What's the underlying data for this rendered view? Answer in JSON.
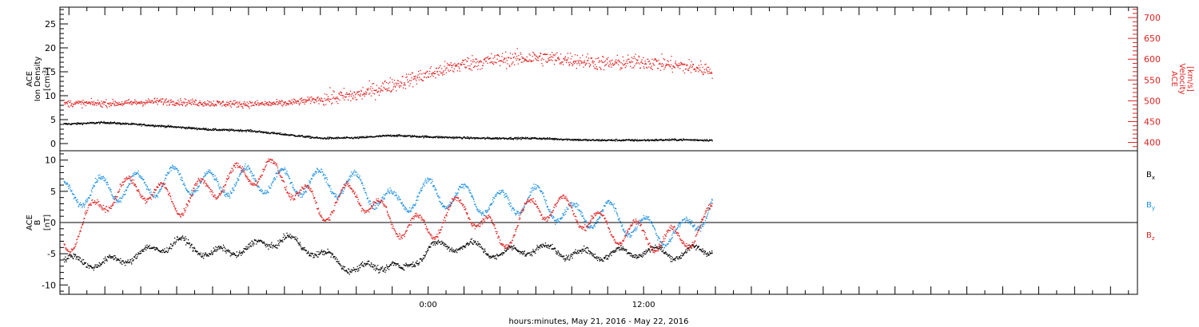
{
  "colors": {
    "black": "#000000",
    "red": "#e02020",
    "blue": "#1a8fe0"
  },
  "footer": {
    "xlabel": "hours:minutes, May 21, 2016 - May 22, 2016"
  },
  "chart_data": [
    {
      "type": "scatter",
      "panel": "top",
      "xlabel": "hours:minutes, May 21, 2016 - May 22, 2016",
      "x_units": "hours relative to May 22, 2016 00:00",
      "xlim": [
        -20.5,
        39.5
      ],
      "x_ticklabels": [
        {
          "x": 0,
          "label": "0:00"
        },
        {
          "x": 12,
          "label": "12:00"
        }
      ],
      "grid": false,
      "left_axis": {
        "label_lines": [
          "ACE",
          "Ion Density"
        ],
        "unit_label": "[cm",
        "unit_super": "-3",
        "unit_suffix": "]",
        "ylim": [
          -1.5,
          28.5
        ],
        "ticks": [
          0,
          5,
          10,
          15,
          20,
          25
        ],
        "color": "#000000"
      },
      "right_axis": {
        "label_lines": [
          "ACE",
          "Velocity"
        ],
        "unit_label": "[km/s]",
        "ylim": [
          380,
          725
        ],
        "ticks": [
          400,
          450,
          500,
          550,
          600,
          650,
          700
        ],
        "color": "#e02020"
      },
      "series": [
        {
          "axis": "left",
          "color": "#000000",
          "keypoints": [
            [
              -20,
              4.2
            ],
            [
              -18,
              4.5
            ],
            [
              -15,
              3.8
            ],
            [
              -12,
              3.0
            ],
            [
              -10,
              2.8
            ],
            [
              -8,
              2.0
            ],
            [
              -6,
              1.2
            ],
            [
              -4,
              1.3
            ],
            [
              -2,
              1.8
            ],
            [
              0,
              1.5
            ],
            [
              3,
              1.2
            ],
            [
              6,
              1.2
            ],
            [
              9,
              0.8
            ],
            [
              12,
              0.8
            ],
            [
              14,
              0.9
            ],
            [
              15.8,
              0.8
            ]
          ]
        },
        {
          "axis": "right",
          "color": "#e02020",
          "keypoints": [
            [
              -20,
              495
            ],
            [
              -17,
              495
            ],
            [
              -15,
              500
            ],
            [
              -12,
              495
            ],
            [
              -10,
              493
            ],
            [
              -8,
              495
            ],
            [
              -6,
              505
            ],
            [
              -4,
              515
            ],
            [
              -2,
              540
            ],
            [
              0,
              565
            ],
            [
              2,
              590
            ],
            [
              4,
              600
            ],
            [
              6,
              605
            ],
            [
              8,
              600
            ],
            [
              10,
              590
            ],
            [
              12,
              595
            ],
            [
              13,
              590
            ],
            [
              14,
              585
            ],
            [
              15.8,
              575
            ]
          ]
        }
      ]
    },
    {
      "type": "scatter",
      "panel": "bottom",
      "xlim": [
        -20.5,
        39.5
      ],
      "grid": false,
      "y_axis": {
        "label_lines": [
          "ACE",
          "B"
        ],
        "unit_label": "[nT]",
        "ylim": [
          -11.5,
          11.5
        ],
        "ticks": [
          -10,
          -5,
          0,
          5,
          10
        ],
        "zero_line": true
      },
      "legend": [
        {
          "name": "B",
          "sub": "x",
          "color": "#000000"
        },
        {
          "name": "B",
          "sub": "y",
          "color": "#1a8fe0"
        },
        {
          "name": "B",
          "sub": "z",
          "color": "#e02020"
        }
      ],
      "series": [
        {
          "name": "Bx",
          "color": "#000000",
          "keypoints": [
            [
              -20,
              -6
            ],
            [
              -18,
              -6.5
            ],
            [
              -16,
              -5
            ],
            [
              -14,
              -3
            ],
            [
              -12,
              -5
            ],
            [
              -10,
              -4
            ],
            [
              -8,
              -2.5
            ],
            [
              -6,
              -5
            ],
            [
              -4,
              -7.5
            ],
            [
              -2,
              -6.5
            ],
            [
              -1.5,
              -8
            ],
            [
              0,
              -4
            ],
            [
              2,
              -3.5
            ],
            [
              4,
              -5
            ],
            [
              6,
              -4
            ],
            [
              8,
              -5
            ],
            [
              10,
              -5
            ],
            [
              12,
              -4.5
            ],
            [
              14,
              -5
            ],
            [
              15.8,
              -4
            ]
          ]
        },
        {
          "name": "By",
          "color": "#1a8fe0",
          "keypoints": [
            [
              -20,
              4.5
            ],
            [
              -18,
              5.5
            ],
            [
              -16,
              6
            ],
            [
              -14,
              7
            ],
            [
              -12,
              6
            ],
            [
              -10,
              7
            ],
            [
              -8,
              6.5
            ],
            [
              -6,
              6.5
            ],
            [
              -4,
              6
            ],
            [
              -2,
              3
            ],
            [
              0,
              5
            ],
            [
              2,
              4
            ],
            [
              4,
              3
            ],
            [
              6,
              4
            ],
            [
              8,
              1
            ],
            [
              10,
              1.5
            ],
            [
              12,
              -1
            ],
            [
              14,
              -2
            ],
            [
              15.8,
              3
            ]
          ]
        },
        {
          "name": "Bz",
          "color": "#e02020",
          "keypoints": [
            [
              -20,
              -3
            ],
            [
              -18,
              4
            ],
            [
              -16,
              6
            ],
            [
              -14,
              3
            ],
            [
              -12,
              6
            ],
            [
              -10,
              8
            ],
            [
              -9,
              8.5
            ],
            [
              -8,
              7
            ],
            [
              -6,
              2
            ],
            [
              -4,
              5
            ],
            [
              -2,
              0
            ],
            [
              0,
              -1
            ],
            [
              2,
              3
            ],
            [
              4,
              -3
            ],
            [
              6,
              3
            ],
            [
              8,
              2
            ],
            [
              10,
              -1
            ],
            [
              12,
              -2
            ],
            [
              14,
              -3
            ],
            [
              15.8,
              1
            ]
          ]
        }
      ]
    }
  ]
}
